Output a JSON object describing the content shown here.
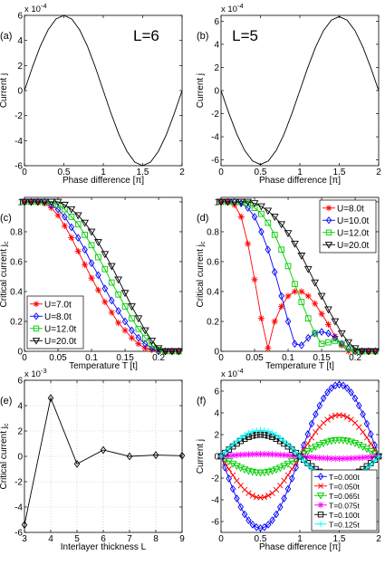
{
  "chart_data": [
    {
      "panel": "(a)",
      "type": "line",
      "annotation": "L=6",
      "xlabel": "Phase difference [π]",
      "ylabel": "Current j",
      "xlim": [
        0,
        2
      ],
      "ylim": [
        -6,
        6
      ],
      "x_ticks": [
        "0",
        "0.5",
        "1",
        "1.5",
        "2"
      ],
      "y_ticks": [
        "-6",
        "-4",
        "-2",
        "0",
        "2",
        "4",
        "6"
      ],
      "y_exponent": "x 10-4",
      "grid": false,
      "series": [
        {
          "color": "#000000",
          "x": [
            0,
            0.1,
            0.2,
            0.3,
            0.4,
            0.5,
            0.6,
            0.7,
            0.8,
            0.9,
            1.0,
            1.1,
            1.2,
            1.3,
            1.4,
            1.5,
            1.6,
            1.7,
            1.8,
            1.9,
            2.0
          ],
          "y": [
            0,
            1.85,
            3.53,
            4.85,
            5.71,
            6.0,
            5.71,
            4.85,
            3.53,
            1.85,
            0,
            -1.85,
            -3.53,
            -4.85,
            -5.71,
            -6.0,
            -5.71,
            -4.85,
            -3.53,
            -1.85,
            0
          ]
        }
      ]
    },
    {
      "panel": "(b)",
      "type": "line",
      "annotation": "L=5",
      "xlabel": "Phase difference [π]",
      "ylabel": "Current j",
      "xlim": [
        0,
        2
      ],
      "ylim": [
        -6.5,
        6.5
      ],
      "x_ticks": [
        "0",
        "0.5",
        "1",
        "1.5",
        "2"
      ],
      "y_ticks": [
        "-6",
        "-4",
        "-2",
        "0",
        "2",
        "4",
        "6"
      ],
      "y_exponent": "x 10-4",
      "grid": false,
      "series": [
        {
          "color": "#000000",
          "x": [
            0,
            0.1,
            0.2,
            0.3,
            0.4,
            0.5,
            0.6,
            0.7,
            0.8,
            0.9,
            1.0,
            1.1,
            1.2,
            1.3,
            1.4,
            1.5,
            1.6,
            1.7,
            1.8,
            1.9,
            2.0
          ],
          "y": [
            0,
            -1.97,
            -3.76,
            -5.18,
            -6.09,
            -6.4,
            -6.09,
            -5.18,
            -3.76,
            -1.97,
            0,
            1.97,
            3.76,
            5.18,
            6.09,
            6.4,
            6.09,
            5.18,
            3.76,
            1.97,
            0
          ]
        }
      ]
    },
    {
      "panel": "(c)",
      "type": "line",
      "xlabel": "Temperature T [t]",
      "ylabel": "Critical current j_c",
      "xlim": [
        0,
        0.235
      ],
      "ylim": [
        0,
        1.03
      ],
      "x_ticks": [
        "0",
        "0.05",
        "0.1",
        "0.15",
        "0.2"
      ],
      "y_ticks": [
        "0",
        "0.2",
        "0.4",
        "0.6",
        "0.8",
        "1"
      ],
      "grid": false,
      "legend": "bottom-left",
      "series": [
        {
          "name": "U=7.0t",
          "color": "#ff0000",
          "marker": "star",
          "x": [
            0,
            0.01,
            0.02,
            0.03,
            0.04,
            0.05,
            0.06,
            0.07,
            0.08,
            0.09,
            0.1,
            0.11,
            0.12,
            0.13,
            0.14,
            0.15,
            0.16,
            0.17,
            0.18,
            0.19,
            0.2,
            0.21,
            0.22,
            0.23
          ],
          "y": [
            1,
            1,
            1,
            0.99,
            0.96,
            0.91,
            0.84,
            0.76,
            0.67,
            0.58,
            0.49,
            0.41,
            0.33,
            0.26,
            0.19,
            0.14,
            0.09,
            0.05,
            0.02,
            0.01,
            0,
            0,
            0,
            0
          ]
        },
        {
          "name": "U=8.0t",
          "color": "#0000ff",
          "marker": "diamond",
          "x": [
            0,
            0.01,
            0.02,
            0.03,
            0.04,
            0.05,
            0.06,
            0.07,
            0.08,
            0.09,
            0.1,
            0.11,
            0.12,
            0.13,
            0.14,
            0.15,
            0.16,
            0.17,
            0.18,
            0.19,
            0.2,
            0.21,
            0.22,
            0.23
          ],
          "y": [
            1,
            1,
            1,
            1,
            0.98,
            0.95,
            0.9,
            0.83,
            0.76,
            0.68,
            0.59,
            0.51,
            0.42,
            0.34,
            0.27,
            0.2,
            0.14,
            0.09,
            0.05,
            0.02,
            0,
            0,
            0,
            0
          ]
        },
        {
          "name": "U=12.0t",
          "color": "#00cc00",
          "marker": "square",
          "x": [
            0,
            0.01,
            0.02,
            0.03,
            0.04,
            0.05,
            0.06,
            0.07,
            0.08,
            0.09,
            0.1,
            0.11,
            0.12,
            0.13,
            0.14,
            0.15,
            0.16,
            0.17,
            0.18,
            0.19,
            0.2,
            0.21,
            0.22,
            0.23
          ],
          "y": [
            1,
            1,
            1,
            1,
            1,
            0.98,
            0.95,
            0.9,
            0.85,
            0.78,
            0.71,
            0.63,
            0.55,
            0.46,
            0.38,
            0.3,
            0.22,
            0.15,
            0.09,
            0.04,
            0.01,
            0,
            0,
            0
          ]
        },
        {
          "name": "U=20.0t",
          "color": "#000000",
          "marker": "triangle-down",
          "x": [
            0,
            0.01,
            0.02,
            0.03,
            0.04,
            0.05,
            0.06,
            0.07,
            0.08,
            0.09,
            0.1,
            0.11,
            0.12,
            0.13,
            0.14,
            0.15,
            0.16,
            0.17,
            0.18,
            0.19,
            0.2,
            0.21,
            0.22,
            0.23
          ],
          "y": [
            1,
            1,
            1,
            1,
            1,
            1,
            0.98,
            0.95,
            0.91,
            0.86,
            0.8,
            0.73,
            0.65,
            0.57,
            0.48,
            0.39,
            0.3,
            0.22,
            0.14,
            0.07,
            0.02,
            0,
            0,
            0
          ]
        }
      ]
    },
    {
      "panel": "(d)",
      "type": "line",
      "xlabel": "Temperature T [t]",
      "ylabel": "Critical current j_c",
      "xlim": [
        0,
        0.235
      ],
      "ylim": [
        0,
        1.03
      ],
      "x_ticks": [
        "0",
        "0.05",
        "0.1",
        "0.15",
        "0.2"
      ],
      "y_ticks": [
        "0",
        "0.2",
        "0.4",
        "0.6",
        "0.8",
        "1"
      ],
      "grid": false,
      "legend": "top-right",
      "series": [
        {
          "name": "U=8.0t",
          "color": "#ff0000",
          "marker": "star",
          "x": [
            0,
            0.01,
            0.02,
            0.03,
            0.04,
            0.05,
            0.06,
            0.07,
            0.08,
            0.09,
            0.1,
            0.11,
            0.12,
            0.13,
            0.14,
            0.15,
            0.16,
            0.17,
            0.18,
            0.19,
            0.2,
            0.21,
            0.22,
            0.23
          ],
          "y": [
            1,
            1,
            0.98,
            0.9,
            0.72,
            0.48,
            0.22,
            0.02,
            0.2,
            0.3,
            0.37,
            0.4,
            0.4,
            0.37,
            0.32,
            0.25,
            0.18,
            0.1,
            0.04,
            0,
            0,
            0,
            0,
            0
          ]
        },
        {
          "name": "U=10.0t",
          "color": "#0000ff",
          "marker": "diamond",
          "x": [
            0,
            0.01,
            0.02,
            0.03,
            0.04,
            0.05,
            0.06,
            0.07,
            0.08,
            0.09,
            0.1,
            0.11,
            0.12,
            0.13,
            0.14,
            0.15,
            0.16,
            0.17,
            0.18,
            0.19,
            0.2,
            0.21,
            0.22,
            0.23
          ],
          "y": [
            1,
            1,
            1,
            0.99,
            0.96,
            0.9,
            0.8,
            0.68,
            0.53,
            0.37,
            0.2,
            0.05,
            0.04,
            0.09,
            0.12,
            0.13,
            0.12,
            0.09,
            0.05,
            0.02,
            0,
            0,
            0,
            0
          ]
        },
        {
          "name": "U=12.0t",
          "color": "#00cc00",
          "marker": "square",
          "x": [
            0,
            0.01,
            0.02,
            0.03,
            0.04,
            0.05,
            0.06,
            0.07,
            0.08,
            0.09,
            0.1,
            0.11,
            0.12,
            0.13,
            0.14,
            0.15,
            0.16,
            0.17,
            0.18,
            0.19,
            0.2,
            0.21,
            0.22,
            0.23
          ],
          "y": [
            1,
            1,
            1,
            1,
            0.99,
            0.96,
            0.92,
            0.86,
            0.78,
            0.68,
            0.57,
            0.45,
            0.33,
            0.22,
            0.12,
            0.05,
            0.06,
            0.07,
            0.05,
            0.02,
            0,
            0,
            0,
            0
          ]
        },
        {
          "name": "U=20.0t",
          "color": "#000000",
          "marker": "triangle-down",
          "x": [
            0,
            0.01,
            0.02,
            0.03,
            0.04,
            0.05,
            0.06,
            0.07,
            0.08,
            0.09,
            0.1,
            0.11,
            0.12,
            0.13,
            0.14,
            0.15,
            0.16,
            0.17,
            0.18,
            0.19,
            0.2,
            0.21,
            0.22,
            0.23
          ],
          "y": [
            1,
            1,
            1,
            1,
            1,
            0.99,
            0.97,
            0.94,
            0.9,
            0.85,
            0.79,
            0.72,
            0.64,
            0.55,
            0.46,
            0.37,
            0.28,
            0.2,
            0.12,
            0.06,
            0.02,
            0,
            0,
            0
          ]
        }
      ]
    },
    {
      "panel": "(e)",
      "type": "line",
      "xlabel": "Interlayer thickness L",
      "ylabel": "Critical current j_c",
      "xlim": [
        3,
        9
      ],
      "ylim": [
        -6,
        6
      ],
      "x_ticks": [
        "3",
        "4",
        "5",
        "6",
        "7",
        "8",
        "9"
      ],
      "y_ticks": [
        "-6",
        "-4",
        "-2",
        "0",
        "2",
        "4",
        "6"
      ],
      "y_exponent": "x 10-3",
      "grid": true,
      "series": [
        {
          "color": "#000000",
          "marker": "diamond",
          "x": [
            3,
            4,
            5,
            6,
            7,
            8,
            9
          ],
          "y": [
            -5.4,
            4.6,
            -0.6,
            0.5,
            0,
            0.1,
            0.05
          ]
        }
      ]
    },
    {
      "panel": "(f)",
      "type": "line",
      "xlabel": "Phase difference [π]",
      "ylabel": "Current j",
      "xlim": [
        0,
        2
      ],
      "ylim": [
        -7,
        7
      ],
      "x_ticks": [
        "0",
        "0.5",
        "1",
        "1.5",
        "2"
      ],
      "y_ticks": [
        "-6",
        "-4",
        "-2",
        "0",
        "2",
        "4",
        "6"
      ],
      "y_exponent": "x 10-4",
      "grid": false,
      "legend": "bottom-right",
      "series": [
        {
          "name": "T=0.000t",
          "color": "#0000ff",
          "marker": "diamond",
          "amplitude": -6.6
        },
        {
          "name": "T=0.050t",
          "color": "#ff0000",
          "marker": "x",
          "amplitude": -3.8
        },
        {
          "name": "T=0.065t",
          "color": "#00cc00",
          "marker": "triangle-down",
          "amplitude": -1.5
        },
        {
          "name": "T=0.075t",
          "color": "#ff00ff",
          "marker": "star",
          "amplitude": 0.2
        },
        {
          "name": "T=0.100t",
          "color": "#000000",
          "marker": "square",
          "amplitude": 2.0
        },
        {
          "name": "T=0.125t",
          "color": "#00ffff",
          "marker": "plus",
          "amplitude": 2.4
        }
      ]
    }
  ]
}
